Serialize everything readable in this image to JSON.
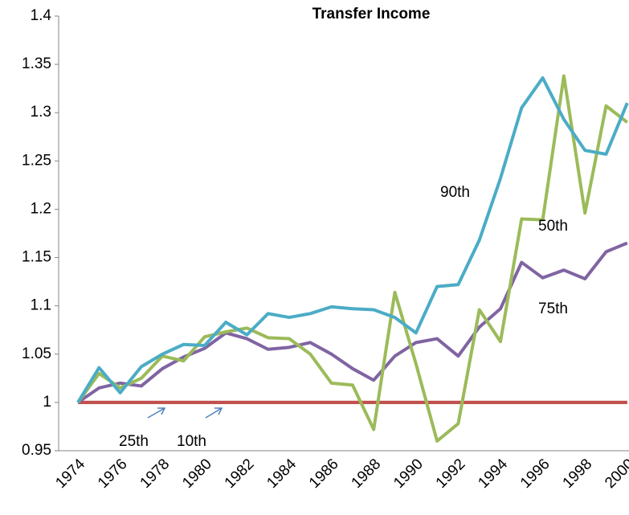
{
  "chart_data": {
    "type": "line",
    "title": "Transfer Income",
    "categories": [
      1974,
      null,
      1976,
      null,
      1978,
      null,
      1980,
      null,
      1982,
      null,
      1984,
      null,
      1986,
      null,
      1988,
      null,
      1990,
      null,
      1992,
      null,
      1994,
      null,
      1996,
      null,
      1998,
      null,
      2000
    ],
    "series": [
      {
        "name": "90th",
        "color": "#4bacc6",
        "values": [
          1.0,
          1.036,
          1.01,
          1.037,
          1.05,
          1.06,
          1.059,
          1.083,
          1.07,
          1.092,
          1.088,
          1.092,
          1.099,
          1.097,
          1.096,
          1.088,
          1.072,
          1.12,
          1.122,
          1.168,
          1.232,
          1.305,
          1.336,
          1.293,
          1.261,
          1.257,
          1.31
        ]
      },
      {
        "name": "50th",
        "color": "#9bbb59",
        "values": [
          1.0,
          1.03,
          1.015,
          1.025,
          1.048,
          1.043,
          1.068,
          1.073,
          1.077,
          1.067,
          1.066,
          1.05,
          1.02,
          1.018,
          0.972,
          1.114,
          1.04,
          0.96,
          0.978,
          1.096,
          1.063,
          1.19,
          1.189,
          1.338,
          1.196,
          1.307,
          1.29
        ]
      },
      {
        "name": "75th",
        "color": "#8064a2",
        "values": [
          1.0,
          1.015,
          1.02,
          1.017,
          1.035,
          1.047,
          1.056,
          1.072,
          1.066,
          1.055,
          1.057,
          1.062,
          1.05,
          1.035,
          1.023,
          1.048,
          1.062,
          1.066,
          1.048,
          1.078,
          1.097,
          1.145,
          1.129,
          1.137,
          1.128,
          1.156,
          1.165
        ]
      },
      {
        "name": "25th",
        "color": "#c0504d",
        "values": [
          1,
          1,
          1,
          1,
          1,
          1,
          1,
          1,
          1,
          1,
          1,
          1,
          1,
          1,
          1,
          1,
          1,
          1,
          1,
          1,
          1,
          1,
          1,
          1,
          1,
          1,
          1
        ]
      },
      {
        "name": "10th",
        "color": "#c0504d",
        "values": [
          1,
          1,
          1,
          1,
          1,
          1,
          1,
          1,
          1,
          1,
          1,
          1,
          1,
          1,
          1,
          1,
          1,
          1,
          1,
          1,
          1,
          1,
          1,
          1,
          1,
          1,
          1
        ]
      }
    ],
    "ylim": [
      0.95,
      1.4
    ],
    "yticks": [
      0.95,
      1,
      1.05,
      1.1,
      1.15,
      1.2,
      1.25,
      1.3,
      1.35,
      1.4
    ],
    "grid": false
  }
}
